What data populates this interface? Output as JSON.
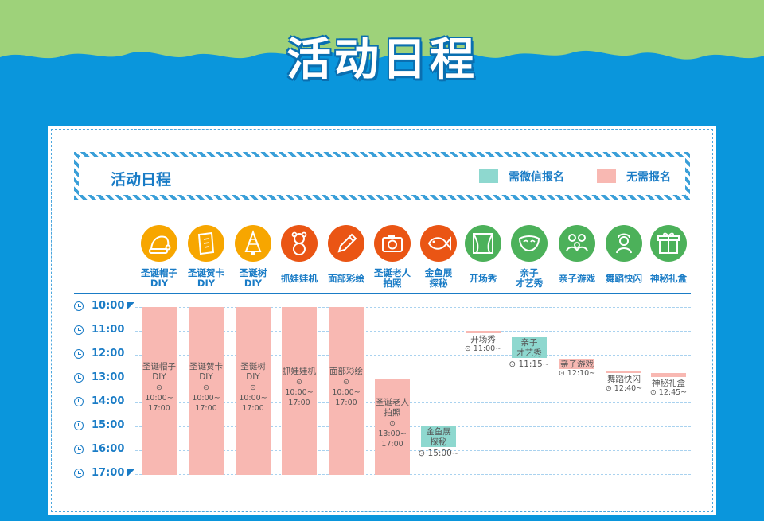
{
  "page": {
    "title": "活动日程"
  },
  "banner": {
    "title": "活动日程"
  },
  "legend": [
    {
      "label": "需微信报名",
      "color": "#8ed8cf"
    },
    {
      "label": "无需报名",
      "color": "#f8b8b2"
    }
  ],
  "columns": [
    {
      "label_l1": "圣诞帽子",
      "label_l2": "DIY",
      "icon": "santa-hat-icon",
      "color": "#f7a600"
    },
    {
      "label_l1": "圣诞贺卡",
      "label_l2": "DIY",
      "icon": "greeting-card-icon",
      "color": "#f7a600"
    },
    {
      "label_l1": "圣诞树",
      "label_l2": "DIY",
      "icon": "christmas-tree-icon",
      "color": "#f7a600"
    },
    {
      "label_l1": "抓娃娃机",
      "label_l2": "",
      "icon": "teddy-bear-icon",
      "color": "#ea5514"
    },
    {
      "label_l1": "面部彩绘",
      "label_l2": "",
      "icon": "pencil-icon",
      "color": "#ea5514"
    },
    {
      "label_l1": "圣诞老人",
      "label_l2": "拍照",
      "icon": "camera-icon",
      "color": "#ea5514"
    },
    {
      "label_l1": "金鱼展",
      "label_l2": "探秘",
      "icon": "fish-icon",
      "color": "#ea5514"
    },
    {
      "label_l1": "开场秀",
      "label_l2": "",
      "icon": "stage-curtain-icon",
      "color": "#4cb15a"
    },
    {
      "label_l1": "亲子",
      "label_l2": "才艺秀",
      "icon": "mask-icon",
      "color": "#4cb15a"
    },
    {
      "label_l1": "亲子游戏",
      "label_l2": "",
      "icon": "family-icon",
      "color": "#4cb15a"
    },
    {
      "label_l1": "舞蹈快闪",
      "label_l2": "",
      "icon": "dancer-icon",
      "color": "#4cb15a"
    },
    {
      "label_l1": "神秘礼盒",
      "label_l2": "",
      "icon": "gift-box-icon",
      "color": "#4cb15a"
    }
  ],
  "times": [
    "10:00",
    "11:00",
    "12:00",
    "13:00",
    "14:00",
    "15:00",
    "16:00",
    "17:00"
  ],
  "events": [
    {
      "l1": "圣诞帽子",
      "l2": "DIY",
      "time": "⊙ 10:00~",
      "time2": "17:00",
      "type": "none"
    },
    {
      "l1": "圣诞贺卡",
      "l2": "DIY",
      "time": "⊙ 10:00~",
      "time2": "17:00",
      "type": "none"
    },
    {
      "l1": "圣诞树",
      "l2": "DIY",
      "time": "⊙ 10:00~",
      "time2": "17:00",
      "type": "none"
    },
    {
      "l1": "抓娃娃机",
      "l2": "",
      "time": "⊙ 10:00~",
      "time2": "17:00",
      "type": "none"
    },
    {
      "l1": "面部彩绘",
      "l2": "",
      "time": "⊙ 10:00~",
      "time2": "17:00",
      "type": "none"
    },
    {
      "l1": "圣诞老人",
      "l2": "拍照",
      "time": "⊙ 13:00~",
      "time2": "17:00",
      "type": "none"
    },
    {
      "l1": "金鱼展",
      "l2": "探秘",
      "time": "⊙ 15:00~",
      "time2": "",
      "type": "wechat"
    },
    {
      "l1": "开场秀",
      "l2": "",
      "time": "⊙ 11:00~",
      "time2": "",
      "type": "none"
    },
    {
      "l1": "亲子",
      "l2": "才艺秀",
      "time": "⊙ 11:15~",
      "time2": "",
      "type": "wechat"
    },
    {
      "l1": "亲子游戏",
      "l2": "",
      "time": "⊙ 12:10~",
      "time2": "",
      "type": "none"
    },
    {
      "l1": "舞蹈快闪",
      "l2": "",
      "time": "⊙ 12:40~",
      "time2": "",
      "type": "none"
    },
    {
      "l1": "神秘礼盒",
      "l2": "",
      "time": "⊙ 12:45~",
      "time2": "",
      "type": "none"
    }
  ]
}
